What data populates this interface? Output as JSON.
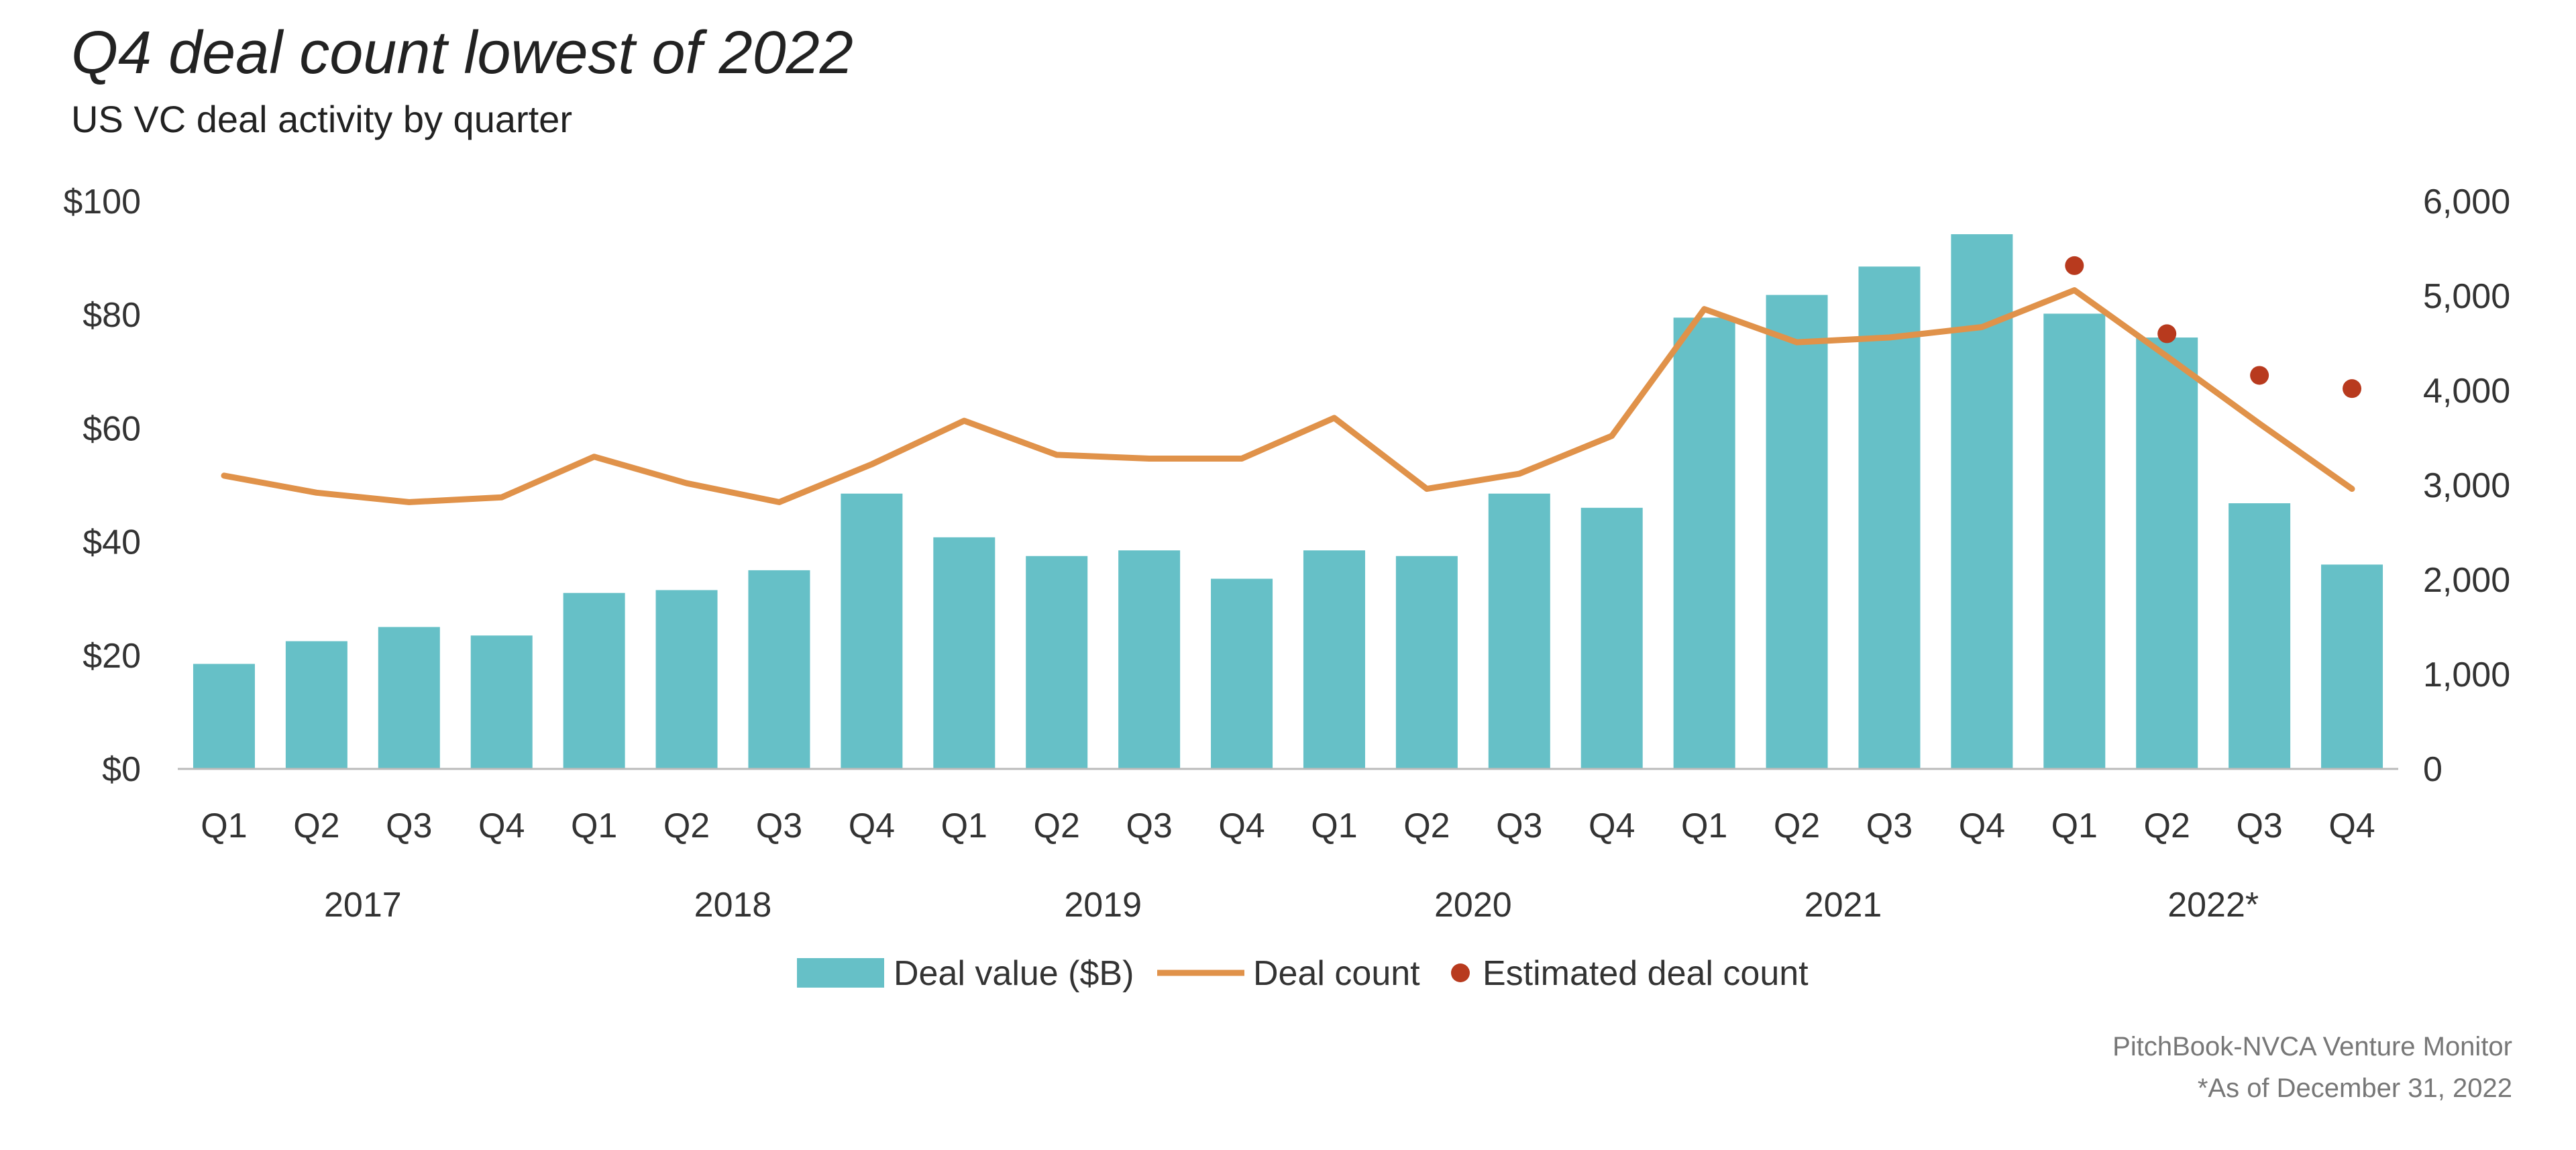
{
  "title": "Q4 deal count lowest of 2022",
  "subtitle": "US VC deal activity by quarter",
  "source": "PitchBook-NVCA Venture Monitor",
  "note": "*As of December 31, 2022",
  "colors": {
    "bar": "#66c0c7",
    "line": "#e0924a",
    "dot": "#b83a1e",
    "axis": "#bbbbbb"
  },
  "chart_data": {
    "type": "bar",
    "categories": [
      "Q1",
      "Q2",
      "Q3",
      "Q4",
      "Q1",
      "Q2",
      "Q3",
      "Q4",
      "Q1",
      "Q2",
      "Q3",
      "Q4",
      "Q1",
      "Q2",
      "Q3",
      "Q4",
      "Q1",
      "Q2",
      "Q3",
      "Q4",
      "Q1",
      "Q2",
      "Q3",
      "Q4"
    ],
    "year_groups": [
      {
        "label": "2017",
        "span": 4
      },
      {
        "label": "2018",
        "span": 4
      },
      {
        "label": "2019",
        "span": 4
      },
      {
        "label": "2020",
        "span": 4
      },
      {
        "label": "2021",
        "span": 4
      },
      {
        "label": "2022*",
        "span": 4
      }
    ],
    "series": [
      {
        "name": "Deal value ($B)",
        "type": "bar",
        "axis": "left",
        "values": [
          18.5,
          22.5,
          25,
          23.5,
          31,
          31.5,
          35,
          48.5,
          40.8,
          37.5,
          38.5,
          33.5,
          38.5,
          37.5,
          48.5,
          46,
          79.5,
          83.5,
          88.5,
          94.2,
          80.2,
          76,
          46.8,
          36
        ]
      },
      {
        "name": "Deal count",
        "type": "line",
        "axis": "right",
        "values": [
          3100,
          2920,
          2820,
          2870,
          3300,
          3020,
          2820,
          3220,
          3680,
          3320,
          3280,
          3280,
          3710,
          2960,
          3120,
          3520,
          4860,
          4510,
          4560,
          4670,
          5060,
          4360,
          3650,
          2960
        ]
      },
      {
        "name": "Estimated deal count",
        "type": "scatter",
        "axis": "right",
        "x_index": [
          20,
          21,
          22,
          23
        ],
        "values": [
          5320,
          4600,
          4160,
          4020
        ]
      }
    ],
    "y_left": {
      "min": 0,
      "max": 100,
      "ticks": [
        "$0",
        "$20",
        "$40",
        "$60",
        "$80",
        "$100"
      ],
      "values": [
        0,
        20,
        40,
        60,
        80,
        100
      ]
    },
    "y_right": {
      "min": 0,
      "max": 6000,
      "ticks": [
        "0",
        "1,000",
        "2,000",
        "3,000",
        "4,000",
        "5,000",
        "6,000"
      ],
      "values": [
        0,
        1000,
        2000,
        3000,
        4000,
        5000,
        6000
      ]
    },
    "legend_position": "bottom-center",
    "grid": false
  }
}
